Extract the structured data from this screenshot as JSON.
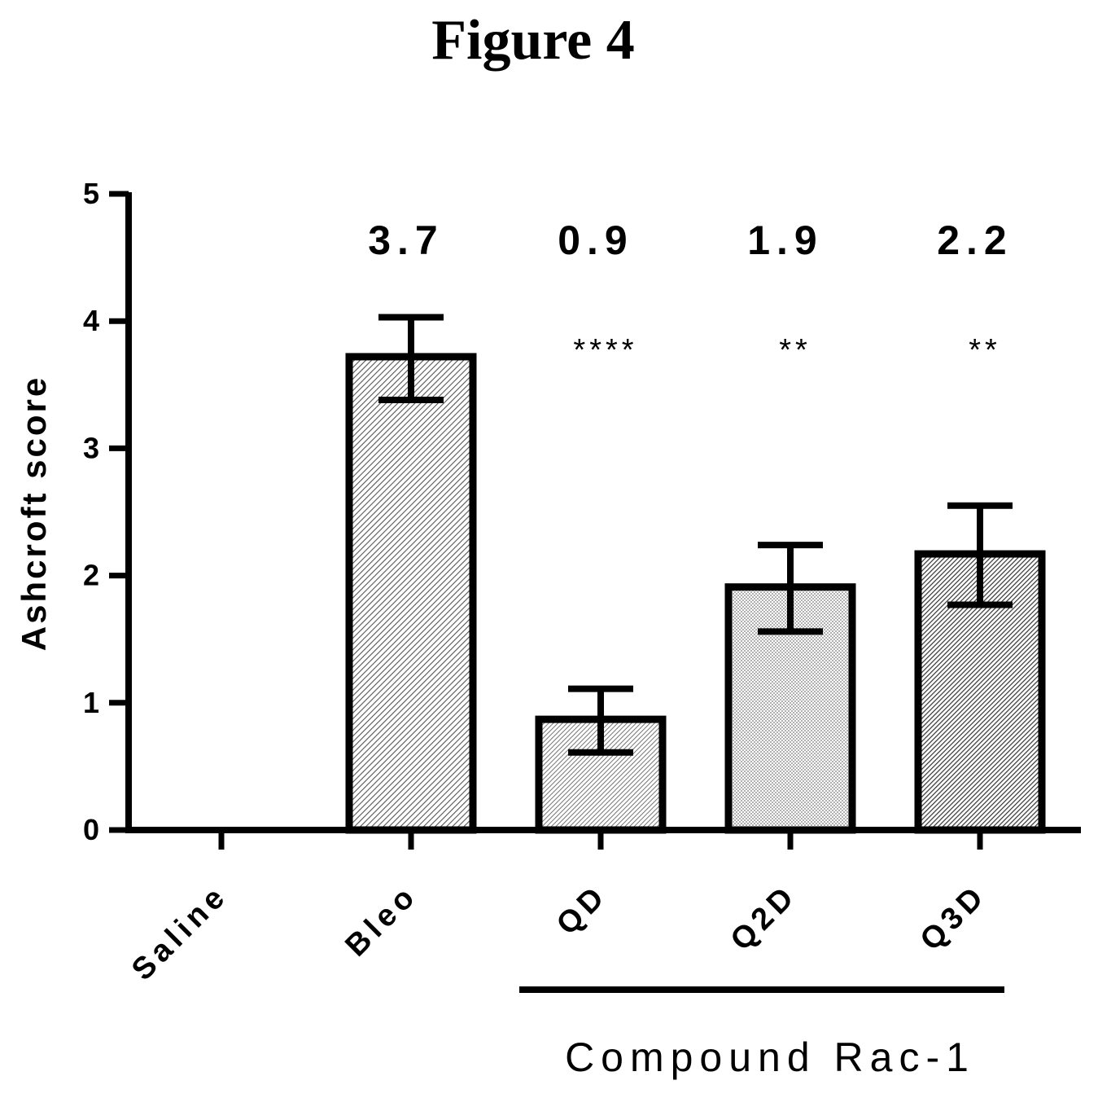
{
  "figure": {
    "title": "Figure 4"
  },
  "chart_data": {
    "type": "bar",
    "title": "",
    "xlabel": "",
    "ylabel": "Ashcroft score",
    "ylim": [
      0,
      5
    ],
    "yticks": [
      "0",
      "1",
      "2",
      "3",
      "4",
      "5"
    ],
    "categories": [
      "Saline",
      "Bleo",
      "QD",
      "Q2D",
      "Q3D"
    ],
    "values": [
      0,
      3.72,
      0.87,
      1.91,
      2.17
    ],
    "error_upper": [
      0,
      4.03,
      1.11,
      2.24,
      2.55
    ],
    "error_lower": [
      0,
      3.38,
      0.61,
      1.56,
      1.77
    ],
    "value_labels": [
      "",
      "3.7",
      "0.9",
      "1.9",
      "2.2"
    ],
    "significance": [
      "",
      "",
      "****",
      "**",
      "**"
    ],
    "patterns": [
      "none",
      "hatch-dense",
      "hatch-medium",
      "dots-light",
      "hatch-dark"
    ],
    "group_label": "Compound Rac-1",
    "group_categories": [
      "QD",
      "Q2D",
      "Q3D"
    ],
    "grid": false,
    "bar_edge_color": "#000000",
    "bar_fill_color": "#ffffff"
  }
}
